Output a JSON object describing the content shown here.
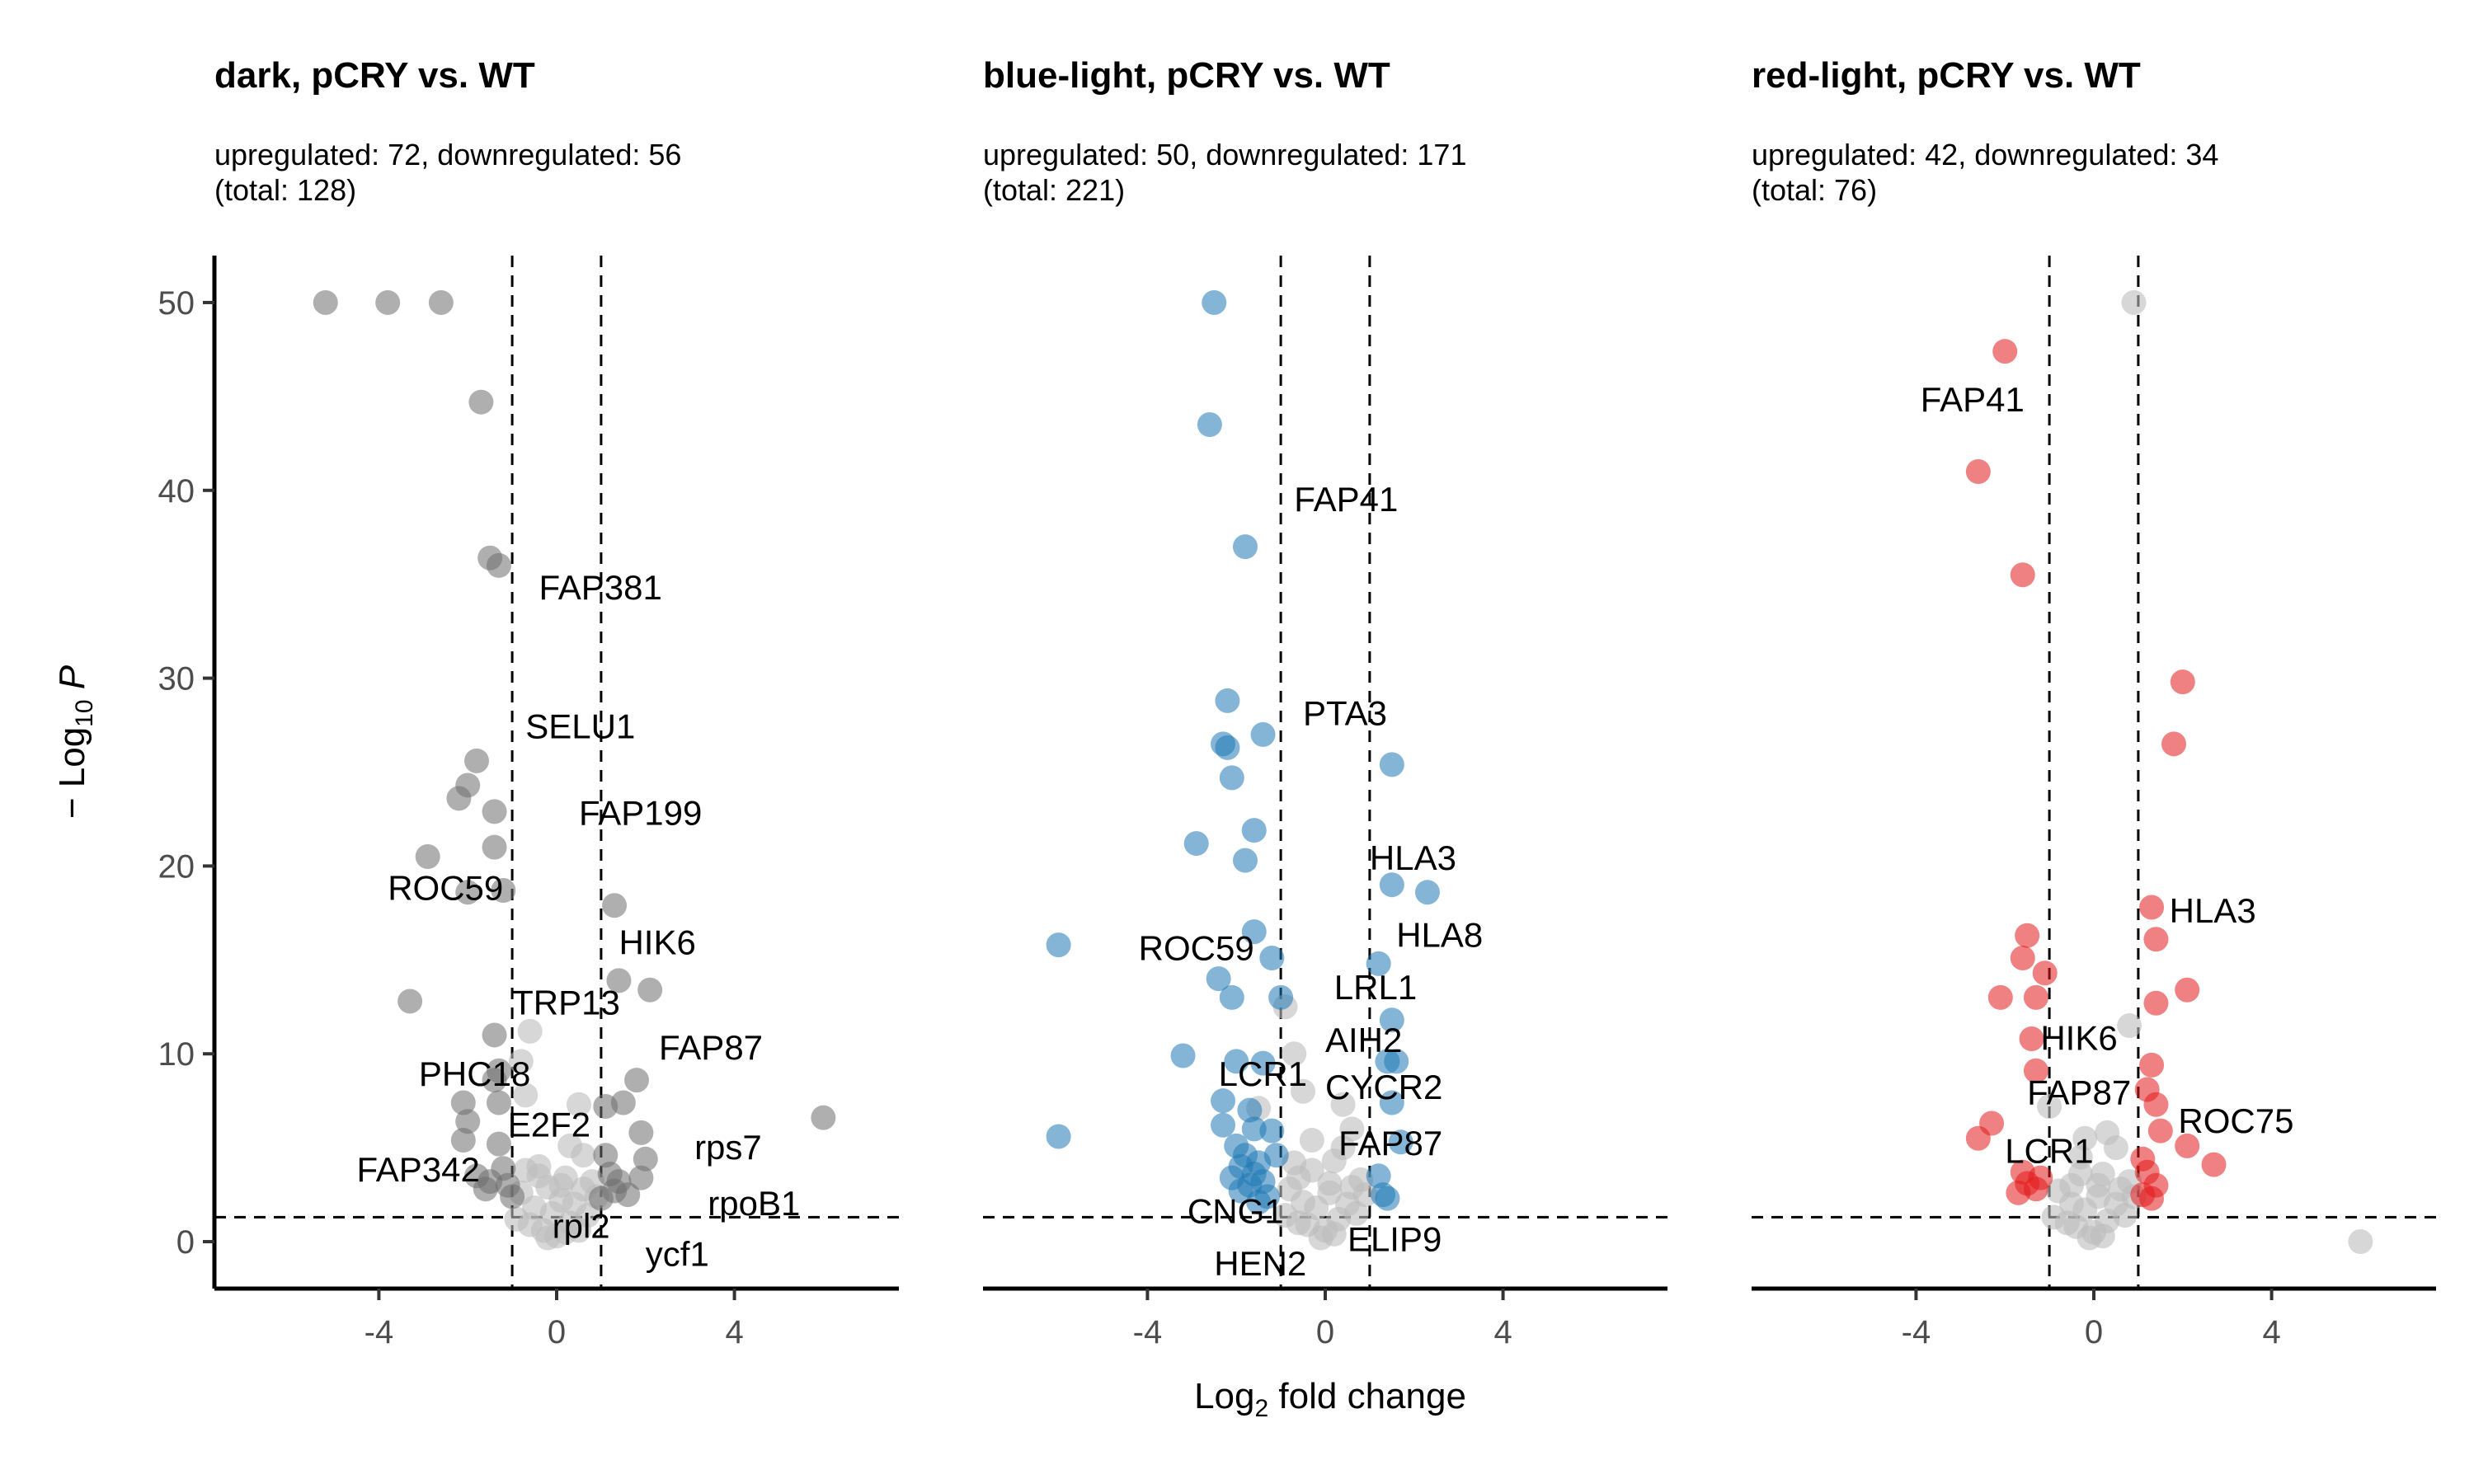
{
  "figure": {
    "xlabel": "Log",
    "xlabel_sub": "2",
    "xlabel_suffix": " fold change",
    "ylabel_prefix": "− Log",
    "ylabel_sub": "10",
    "ylabel_italic": "P"
  },
  "colors": {
    "ns": "#bdbdbd",
    "dark": "#6e6e6e",
    "blue": "#1f78b4",
    "red": "#e31a1c"
  },
  "chart_data": [
    {
      "type": "scatter",
      "title": "dark, pCRY vs. WT",
      "subtitle_line1": "upregulated: 72, downregulated: 56",
      "subtitle_line2": "(total: 128)",
      "xlim": [
        -7.7,
        7.7
      ],
      "ylim": [
        -2.5,
        52.5
      ],
      "xticks": [
        -4,
        0,
        4
      ],
      "yticks": [
        0,
        10,
        20,
        30,
        40,
        50
      ],
      "fc_cutoff": 1,
      "p_cutoff": 1.3,
      "color_key": "dark",
      "significant": [
        [
          -5.2,
          50
        ],
        [
          -3.8,
          50
        ],
        [
          -2.6,
          50
        ],
        [
          -1.7,
          44.7
        ],
        [
          -1.5,
          36.4
        ],
        [
          -1.3,
          36
        ],
        [
          -1.8,
          25.6
        ],
        [
          -2.0,
          24.3
        ],
        [
          -2.2,
          23.6
        ],
        [
          -1.4,
          22.9
        ],
        [
          -1.4,
          21.0
        ],
        [
          -2.9,
          20.5
        ],
        [
          -2.0,
          18.6
        ],
        [
          -1.2,
          18.7
        ],
        [
          1.3,
          17.9
        ],
        [
          1.4,
          13.9
        ],
        [
          2.1,
          13.4
        ],
        [
          -3.3,
          12.8
        ],
        [
          -1.4,
          11.0
        ],
        [
          -1.3,
          9.1
        ],
        [
          -1.4,
          8.6
        ],
        [
          -2.1,
          7.4
        ],
        [
          -1.3,
          7.4
        ],
        [
          1.1,
          7.2
        ],
        [
          1.5,
          7.4
        ],
        [
          1.8,
          8.6
        ],
        [
          1.9,
          5.8
        ],
        [
          6.0,
          6.6
        ],
        [
          -2.0,
          6.4
        ],
        [
          -2.1,
          5.4
        ],
        [
          -1.3,
          5.2
        ],
        [
          -1.8,
          3.5
        ],
        [
          -1.5,
          3.2
        ],
        [
          -1.2,
          3.9
        ],
        [
          -1.1,
          3.0
        ],
        [
          -1.6,
          2.8
        ],
        [
          1.2,
          3.6
        ],
        [
          1.4,
          3.2
        ],
        [
          1.3,
          2.7
        ],
        [
          1.9,
          3.4
        ],
        [
          2.0,
          4.4
        ],
        [
          1.6,
          2.5
        ],
        [
          1.1,
          4.6
        ],
        [
          -1.0,
          2.4
        ],
        [
          1.0,
          2.3
        ]
      ],
      "nonsignificant": [
        [
          -0.8,
          9.6
        ],
        [
          -0.6,
          11.2
        ],
        [
          -0.7,
          7.8
        ],
        [
          0.5,
          7.3
        ],
        [
          0.3,
          5.1
        ],
        [
          -0.4,
          4.0
        ],
        [
          0.6,
          4.6
        ],
        [
          0.2,
          3.4
        ],
        [
          -0.2,
          2.9
        ],
        [
          0.1,
          2.2
        ],
        [
          -0.1,
          1.5
        ],
        [
          0.3,
          1.0
        ],
        [
          0.0,
          0.3
        ],
        [
          -0.3,
          0.6
        ],
        [
          0.4,
          2.0
        ],
        [
          0.8,
          3.2
        ],
        [
          -0.8,
          2.6
        ],
        [
          -0.5,
          1.8
        ],
        [
          0.7,
          1.4
        ],
        [
          -0.6,
          0.9
        ],
        [
          0.2,
          0.5
        ],
        [
          -0.2,
          0.2
        ],
        [
          0.5,
          0.6
        ],
        [
          0.9,
          2.4
        ],
        [
          -0.9,
          1.2
        ],
        [
          0.1,
          3.0
        ],
        [
          -0.4,
          3.5
        ],
        [
          0.6,
          2.8
        ],
        [
          -0.7,
          3.8
        ]
      ],
      "labels": [
        {
          "text": "FAP381",
          "x": -0.4,
          "y": 34.2
        },
        {
          "text": "SELU1",
          "x": -0.7,
          "y": 26.8
        },
        {
          "text": "FAP199",
          "x": 0.5,
          "y": 22.2
        },
        {
          "text": "ROC59",
          "x": -3.8,
          "y": 18.2
        },
        {
          "text": "HIK6",
          "x": 1.4,
          "y": 15.3
        },
        {
          "text": "TRP13",
          "x": -1.0,
          "y": 12.1
        },
        {
          "text": "FAP87",
          "x": 2.3,
          "y": 9.7
        },
        {
          "text": "PHC18",
          "x": -3.1,
          "y": 8.3
        },
        {
          "text": "E2F2",
          "x": -1.1,
          "y": 5.6
        },
        {
          "text": "rps7",
          "x": 3.1,
          "y": 4.4
        },
        {
          "text": "FAP342",
          "x": -4.5,
          "y": 3.2
        },
        {
          "text": "rpoB1",
          "x": 3.4,
          "y": 1.4
        },
        {
          "text": "rpl2",
          "x": -0.1,
          "y": 0.2
        },
        {
          "text": "ycf1",
          "x": 2.0,
          "y": -1.3
        }
      ]
    },
    {
      "type": "scatter",
      "title": "blue-light, pCRY vs. WT",
      "subtitle_line1": "upregulated: 50, downregulated: 171",
      "subtitle_line2": "(total: 221)",
      "xlim": [
        -7.7,
        7.7
      ],
      "ylim": [
        -2.5,
        52.5
      ],
      "xticks": [
        -4,
        0,
        4
      ],
      "yticks": [
        0,
        10,
        20,
        30,
        40,
        50
      ],
      "fc_cutoff": 1,
      "p_cutoff": 1.3,
      "color_key": "blue",
      "significant": [
        [
          -2.5,
          50
        ],
        [
          -2.6,
          43.5
        ],
        [
          -1.8,
          37
        ],
        [
          -2.2,
          28.8
        ],
        [
          -1.4,
          27.0
        ],
        [
          -2.3,
          26.5
        ],
        [
          -2.2,
          26.3
        ],
        [
          -2.1,
          24.7
        ],
        [
          -1.6,
          21.9
        ],
        [
          -2.9,
          21.2
        ],
        [
          -1.8,
          20.3
        ],
        [
          1.5,
          25.4
        ],
        [
          1.5,
          19.0
        ],
        [
          2.3,
          18.6
        ],
        [
          -1.6,
          16.5
        ],
        [
          -6.0,
          15.8
        ],
        [
          -1.2,
          15.1
        ],
        [
          1.2,
          14.8
        ],
        [
          -2.4,
          14.0
        ],
        [
          -2.1,
          13.0
        ],
        [
          -1.0,
          13.0
        ],
        [
          1.5,
          11.8
        ],
        [
          -3.2,
          9.9
        ],
        [
          -2.0,
          9.6
        ],
        [
          -1.4,
          9.5
        ],
        [
          1.4,
          9.6
        ],
        [
          1.6,
          9.6
        ],
        [
          -2.3,
          7.5
        ],
        [
          -6.0,
          5.6
        ],
        [
          -1.7,
          7.0
        ],
        [
          1.5,
          7.4
        ],
        [
          1.7,
          5.3
        ],
        [
          -2.0,
          5.1
        ],
        [
          -1.8,
          4.6
        ],
        [
          -1.5,
          4.2
        ],
        [
          -1.6,
          3.6
        ],
        [
          -1.7,
          3.0
        ],
        [
          -1.9,
          2.7
        ],
        [
          -1.4,
          3.2
        ],
        [
          -1.3,
          2.4
        ],
        [
          -1.5,
          2.1
        ],
        [
          -2.1,
          3.4
        ],
        [
          -1.2,
          5.9
        ],
        [
          -1.1,
          4.6
        ],
        [
          1.3,
          2.5
        ],
        [
          1.2,
          3.5
        ],
        [
          1.4,
          2.3
        ],
        [
          -2.3,
          6.2
        ],
        [
          -1.6,
          6.0
        ],
        [
          -1.9,
          4.0
        ]
      ],
      "nonsignificant": [
        [
          -1.5,
          7.1
        ],
        [
          -0.9,
          12.5
        ],
        [
          -0.7,
          10.0
        ],
        [
          -0.5,
          8.0
        ],
        [
          0.4,
          7.3
        ],
        [
          0.6,
          6.0
        ],
        [
          -0.3,
          5.4
        ],
        [
          0.2,
          4.3
        ],
        [
          -0.6,
          3.4
        ],
        [
          0.1,
          2.6
        ],
        [
          -0.2,
          1.8
        ],
        [
          0.3,
          1.2
        ],
        [
          0.0,
          0.6
        ],
        [
          -0.4,
          0.9
        ],
        [
          0.5,
          2.0
        ],
        [
          0.8,
          3.3
        ],
        [
          -0.8,
          2.8
        ],
        [
          -0.5,
          2.1
        ],
        [
          0.7,
          1.5
        ],
        [
          -0.6,
          1.0
        ],
        [
          0.2,
          0.4
        ],
        [
          -0.1,
          0.2
        ],
        [
          0.9,
          2.5
        ],
        [
          -0.9,
          1.4
        ],
        [
          0.1,
          3.1
        ],
        [
          -0.3,
          3.8
        ],
        [
          0.6,
          2.9
        ],
        [
          -0.7,
          4.2
        ],
        [
          0.4,
          5.0
        ]
      ],
      "labels": [
        {
          "text": "FAP41",
          "x": -0.7,
          "y": 38.9
        },
        {
          "text": "PTA3",
          "x": -0.5,
          "y": 27.5
        },
        {
          "text": "HLA3",
          "x": 1.0,
          "y": 19.8
        },
        {
          "text": "ROC59",
          "x": -4.2,
          "y": 15.0
        },
        {
          "text": "HLA8",
          "x": 1.6,
          "y": 15.7
        },
        {
          "text": "LRL1",
          "x": 0.2,
          "y": 12.9
        },
        {
          "text": "AIH2",
          "x": 0.0,
          "y": 10.1
        },
        {
          "text": "LCR1",
          "x": -2.4,
          "y": 8.3
        },
        {
          "text": "CYCR2",
          "x": 0.0,
          "y": 7.6
        },
        {
          "text": "FAP87",
          "x": 0.3,
          "y": 4.6
        },
        {
          "text": "CNG1",
          "x": -3.1,
          "y": 1.0
        },
        {
          "text": "ELIP9",
          "x": 0.5,
          "y": -0.5
        },
        {
          "text": "HEN2",
          "x": -2.5,
          "y": -1.8
        }
      ]
    },
    {
      "type": "scatter",
      "title": "red-light, pCRY vs. WT",
      "subtitle_line1": "upregulated: 42, downregulated: 34",
      "subtitle_line2": "(total: 76)",
      "xlim": [
        -7.7,
        7.7
      ],
      "ylim": [
        -2.5,
        52.5
      ],
      "xticks": [
        -4,
        0,
        4
      ],
      "yticks": [
        0,
        10,
        20,
        30,
        40,
        50
      ],
      "fc_cutoff": 1,
      "p_cutoff": 1.3,
      "color_key": "red",
      "significant": [
        [
          -2.0,
          47.4
        ],
        [
          -2.6,
          41.0
        ],
        [
          -1.6,
          35.5
        ],
        [
          2.0,
          29.8
        ],
        [
          1.8,
          26.5
        ],
        [
          -1.5,
          16.3
        ],
        [
          1.3,
          17.8
        ],
        [
          1.4,
          16.1
        ],
        [
          -1.6,
          15.1
        ],
        [
          -1.1,
          14.3
        ],
        [
          2.1,
          13.4
        ],
        [
          1.4,
          12.7
        ],
        [
          -2.1,
          13.0
        ],
        [
          -1.3,
          13.0
        ],
        [
          -1.4,
          10.8
        ],
        [
          1.3,
          9.4
        ],
        [
          -1.3,
          9.1
        ],
        [
          1.2,
          8.1
        ],
        [
          1.4,
          7.3
        ],
        [
          1.5,
          5.9
        ],
        [
          2.1,
          5.1
        ],
        [
          2.7,
          4.1
        ],
        [
          -2.6,
          5.5
        ],
        [
          -2.3,
          6.3
        ],
        [
          1.1,
          4.4
        ],
        [
          1.2,
          3.7
        ],
        [
          1.4,
          3.0
        ],
        [
          -1.6,
          3.7
        ],
        [
          -1.5,
          3.1
        ],
        [
          -1.3,
          2.8
        ],
        [
          -1.7,
          2.6
        ],
        [
          -1.2,
          3.4
        ],
        [
          1.1,
          2.5
        ],
        [
          1.3,
          2.3
        ]
      ],
      "nonsignificant": [
        [
          0.9,
          50
        ],
        [
          6.0,
          0.0
        ],
        [
          -1.0,
          7.2
        ],
        [
          0.3,
          5.8
        ],
        [
          0.5,
          5.0
        ],
        [
          -0.3,
          4.5
        ],
        [
          0.2,
          3.6
        ],
        [
          -0.5,
          3.0
        ],
        [
          0.1,
          2.4
        ],
        [
          -0.2,
          1.7
        ],
        [
          0.3,
          1.1
        ],
        [
          0.0,
          0.5
        ],
        [
          -0.4,
          0.8
        ],
        [
          0.5,
          2.0
        ],
        [
          0.8,
          3.2
        ],
        [
          -0.8,
          2.7
        ],
        [
          -0.5,
          2.0
        ],
        [
          0.7,
          1.4
        ],
        [
          -0.6,
          1.0
        ],
        [
          0.2,
          0.3
        ],
        [
          -0.1,
          0.2
        ],
        [
          0.9,
          2.4
        ],
        [
          -0.9,
          1.3
        ],
        [
          0.1,
          3.0
        ],
        [
          -0.3,
          3.6
        ],
        [
          0.6,
          2.8
        ],
        [
          0.8,
          11.5
        ],
        [
          -0.2,
          5.5
        ]
      ],
      "labels": [
        {
          "text": "FAP41",
          "x": -3.9,
          "y": 44.2
        },
        {
          "text": "HLA3",
          "x": 1.7,
          "y": 17.0
        },
        {
          "text": "HIK6",
          "x": -1.2,
          "y": 10.2
        },
        {
          "text": "FAP87",
          "x": -1.5,
          "y": 7.3
        },
        {
          "text": "ROC75",
          "x": 1.9,
          "y": 5.8
        },
        {
          "text": "LCR1",
          "x": -2.0,
          "y": 4.2
        }
      ]
    }
  ]
}
